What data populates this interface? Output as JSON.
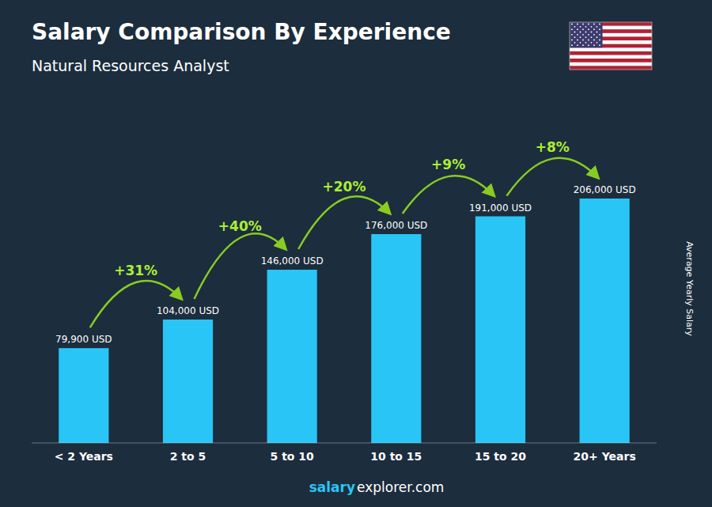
{
  "chart_data": {
    "type": "bar",
    "title": "Salary Comparison By Experience",
    "subtitle": "Natural Resources Analyst",
    "categories": [
      "< 2 Years",
      "2 to 5",
      "5 to 10",
      "10 to 15",
      "15 to 20",
      "20+ Years"
    ],
    "values": [
      79900,
      104000,
      146000,
      176000,
      191000,
      206000
    ],
    "value_labels": [
      "79,900 USD",
      "104,000 USD",
      "146,000 USD",
      "176,000 USD",
      "191,000 USD",
      "206,000 USD"
    ],
    "data_labels": true,
    "color": "#29c5f6",
    "ylim": [
      0,
      260000
    ],
    "y_label": "Average Yearly Salary",
    "tick_labels": "x",
    "grid": false,
    "annotations": [
      "+31%",
      "+40%",
      "+20%",
      "+9%",
      "+8%"
    ],
    "footer": [
      "salary",
      "explorer.com"
    ]
  }
}
